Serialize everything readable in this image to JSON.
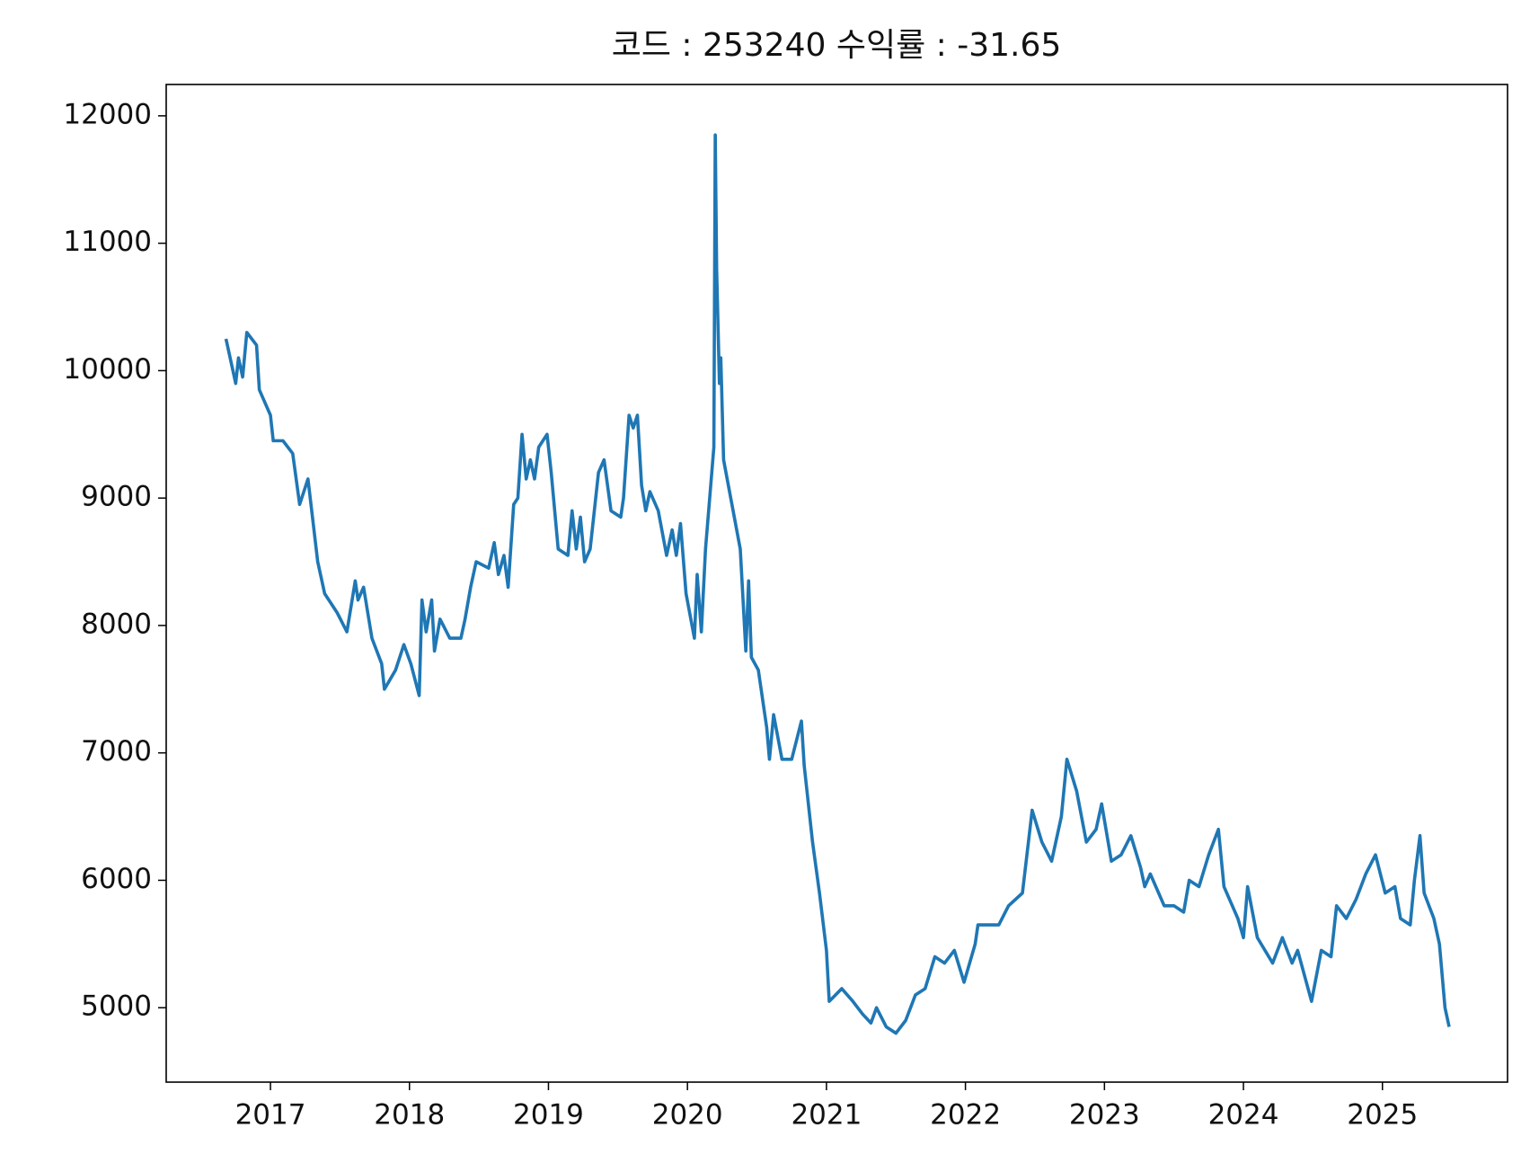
{
  "chart_data": {
    "type": "line",
    "title": "코드 : 253240 수익률 : -31.65",
    "x": [
      2016.68,
      2016.75,
      2016.77,
      2016.8,
      2016.83,
      2016.9,
      2016.92,
      2017.0,
      2017.02,
      2017.09,
      2017.16,
      2017.21,
      2017.27,
      2017.34,
      2017.39,
      2017.48,
      2017.55,
      2017.61,
      2017.63,
      2017.67,
      2017.73,
      2017.8,
      2017.82,
      2017.9,
      2017.96,
      2018.01,
      2018.07,
      2018.09,
      2018.12,
      2018.16,
      2018.18,
      2018.22,
      2018.29,
      2018.37,
      2018.4,
      2018.44,
      2018.48,
      2018.57,
      2018.61,
      2018.64,
      2018.68,
      2018.71,
      2018.75,
      2018.78,
      2018.81,
      2018.84,
      2018.87,
      2018.9,
      2018.93,
      2018.99,
      2019.02,
      2019.07,
      2019.14,
      2019.17,
      2019.2,
      2019.23,
      2019.26,
      2019.3,
      2019.36,
      2019.4,
      2019.45,
      2019.52,
      2019.54,
      2019.58,
      2019.61,
      2019.64,
      2019.67,
      2019.7,
      2019.73,
      2019.79,
      2019.85,
      2019.89,
      2019.92,
      2019.95,
      2019.99,
      2020.05,
      2020.07,
      2020.1,
      2020.13,
      2020.16,
      2020.19,
      2020.2,
      2020.21,
      2020.23,
      2020.24,
      2020.26,
      2020.32,
      2020.38,
      2020.42,
      2020.44,
      2020.46,
      2020.51,
      2020.57,
      2020.59,
      2020.62,
      2020.68,
      2020.75,
      2020.82,
      2020.84,
      2020.9,
      2020.95,
      2021.0,
      2021.02,
      2021.11,
      2021.19,
      2021.26,
      2021.32,
      2021.36,
      2021.43,
      2021.5,
      2021.57,
      2021.64,
      2021.71,
      2021.78,
      2021.85,
      2021.92,
      2021.99,
      2022.07,
      2022.09,
      2022.17,
      2022.24,
      2022.31,
      2022.41,
      2022.48,
      2022.55,
      2022.62,
      2022.69,
      2022.73,
      2022.8,
      2022.87,
      2022.94,
      2022.98,
      2023.05,
      2023.12,
      2023.19,
      2023.26,
      2023.29,
      2023.33,
      2023.43,
      2023.5,
      2023.57,
      2023.61,
      2023.68,
      2023.75,
      2023.82,
      2023.86,
      2023.96,
      2024.0,
      2024.03,
      2024.1,
      2024.21,
      2024.28,
      2024.35,
      2024.39,
      2024.49,
      2024.56,
      2024.63,
      2024.67,
      2024.74,
      2024.81,
      2024.88,
      2024.95,
      2025.02,
      2025.09,
      2025.13,
      2025.2,
      2025.23,
      2025.27,
      2025.3,
      2025.37,
      2025.41,
      2025.45,
      2025.48
    ],
    "series": [
      {
        "color": "#1f77b4",
        "values": [
          10250,
          9900,
          10100,
          9950,
          10300,
          10200,
          9850,
          9650,
          9450,
          9450,
          9350,
          8950,
          9150,
          8500,
          8250,
          8100,
          7950,
          8350,
          8200,
          8300,
          7900,
          7700,
          7500,
          7650,
          7850,
          7700,
          7450,
          8200,
          7950,
          8200,
          7800,
          8050,
          7900,
          7900,
          8050,
          8300,
          8500,
          8450,
          8650,
          8400,
          8550,
          8300,
          8950,
          9000,
          9500,
          9150,
          9300,
          9150,
          9400,
          9500,
          9200,
          8600,
          8550,
          8900,
          8600,
          8850,
          8500,
          8600,
          9200,
          9300,
          8900,
          8850,
          9000,
          9650,
          9550,
          9650,
          9100,
          8900,
          9050,
          8900,
          8550,
          8750,
          8550,
          8800,
          8250,
          7900,
          8400,
          7950,
          8600,
          9000,
          9400,
          11850,
          10800,
          9900,
          10100,
          9300,
          8950,
          8600,
          7800,
          8350,
          7750,
          7650,
          7200,
          6950,
          7300,
          6950,
          6950,
          7250,
          6900,
          6300,
          5900,
          5450,
          5050,
          5150,
          5050,
          4950,
          4880,
          5000,
          4850,
          4800,
          4900,
          5100,
          5150,
          5400,
          5350,
          5450,
          5200,
          5500,
          5650,
          5650,
          5650,
          5800,
          5900,
          6550,
          6300,
          6150,
          6500,
          6950,
          6700,
          6300,
          6400,
          6600,
          6150,
          6200,
          6350,
          6100,
          5950,
          6050,
          5800,
          5800,
          5750,
          6000,
          5950,
          6200,
          6400,
          5950,
          5700,
          5550,
          5950,
          5550,
          5350,
          5550,
          5350,
          5450,
          5050,
          5450,
          5400,
          5800,
          5700,
          5850,
          6050,
          6200,
          5900,
          5950,
          5700,
          5650,
          6000,
          6350,
          5900,
          5700,
          5500,
          5000,
          4850
        ]
      }
    ],
    "xlim": [
      2016.25,
      2025.9
    ],
    "xticks": [
      2017,
      2018,
      2019,
      2020,
      2021,
      2022,
      2023,
      2024,
      2025
    ],
    "ylim": [
      4416,
      12246
    ],
    "yticks": [
      5000,
      6000,
      7000,
      8000,
      9000,
      10000,
      11000,
      12000
    ]
  }
}
